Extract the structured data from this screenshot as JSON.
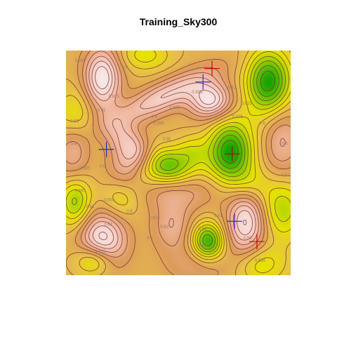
{
  "chart_data": {
    "type": "heatmap",
    "title": "Training_Sky300",
    "xlabel": "",
    "ylabel": "",
    "colormap": [
      "#10a000",
      "#58bf00",
      "#a6d400",
      "#e6e300",
      "#e8c04a",
      "#dc9b5a",
      "#efb59c",
      "#f6d4cc",
      "#f8e8ea"
    ],
    "contour_labels": [
      {
        "x": 0.13,
        "y": 0.9,
        "text": "0.615"
      },
      {
        "x": 0.17,
        "y": 0.78,
        "text": "0.62"
      },
      {
        "x": 0.09,
        "y": 0.7,
        "text": "0.61"
      },
      {
        "x": 0.17,
        "y": 0.67,
        "text": "0.605"
      },
      {
        "x": 0.04,
        "y": 0.63,
        "text": "0.595"
      },
      {
        "x": 0.27,
        "y": 0.72,
        "text": "0.6"
      },
      {
        "x": 0.06,
        "y": 0.53,
        "text": "0.605"
      },
      {
        "x": 0.15,
        "y": 0.52,
        "text": "0.6"
      },
      {
        "x": 0.36,
        "y": 0.84,
        "text": "0.6"
      },
      {
        "x": 0.37,
        "y": 0.75,
        "text": "0.615"
      },
      {
        "x": 0.42,
        "y": 0.79,
        "text": "0.62"
      },
      {
        "x": 0.59,
        "y": 0.8,
        "text": "0.62"
      },
      {
        "x": 0.59,
        "y": 0.87,
        "text": "0.61"
      },
      {
        "x": 0.66,
        "y": 0.74,
        "text": "0.61"
      },
      {
        "x": 0.84,
        "y": 0.94,
        "text": "0.595"
      },
      {
        "x": 0.79,
        "y": 0.84,
        "text": "0.59"
      },
      {
        "x": 0.96,
        "y": 0.56,
        "text": "0.61"
      },
      {
        "x": 0.96,
        "y": 0.42,
        "text": "0.6"
      },
      {
        "x": 0.02,
        "y": 0.42,
        "text": "0.6"
      },
      {
        "x": 0.02,
        "y": 0.32,
        "text": "0.59"
      },
      {
        "x": 0.43,
        "y": 0.4,
        "text": "0.59"
      },
      {
        "x": 0.39,
        "y": 0.33,
        "text": "0.595"
      },
      {
        "x": 0.38,
        "y": 0.3,
        "text": "0.6"
      },
      {
        "x": 0.46,
        "y": 0.26,
        "text": "0.605"
      },
      {
        "x": 0.19,
        "y": 0.21,
        "text": "0.615"
      },
      {
        "x": 0.14,
        "y": 0.27,
        "text": "0.61"
      },
      {
        "x": 0.56,
        "y": 0.19,
        "text": "0.595"
      },
      {
        "x": 0.74,
        "y": 0.3,
        "text": "0.605"
      },
      {
        "x": 0.78,
        "y": 0.24,
        "text": "0.615"
      },
      {
        "x": 0.72,
        "y": 0.17,
        "text": "0.62"
      },
      {
        "x": 0.86,
        "y": 0.1,
        "text": "0.61"
      },
      {
        "x": 0.86,
        "y": 0.33,
        "text": "0.6"
      },
      {
        "x": 0.04,
        "y": 0.05,
        "text": "0.595"
      },
      {
        "x": 0.25,
        "y": 0.08,
        "text": "0.6"
      }
    ],
    "markers": [
      {
        "x": 0.85,
        "y": 0.85,
        "color": "#c00000"
      },
      {
        "x": 0.75,
        "y": 0.76,
        "color": "#2020c0"
      },
      {
        "x": 0.74,
        "y": 0.46,
        "color": "#c00000"
      },
      {
        "x": 0.18,
        "y": 0.44,
        "color": "#2020c0"
      },
      {
        "x": 0.61,
        "y": 0.14,
        "color": "#2020c0"
      },
      {
        "x": 0.65,
        "y": 0.08,
        "color": "#c00000"
      }
    ]
  }
}
